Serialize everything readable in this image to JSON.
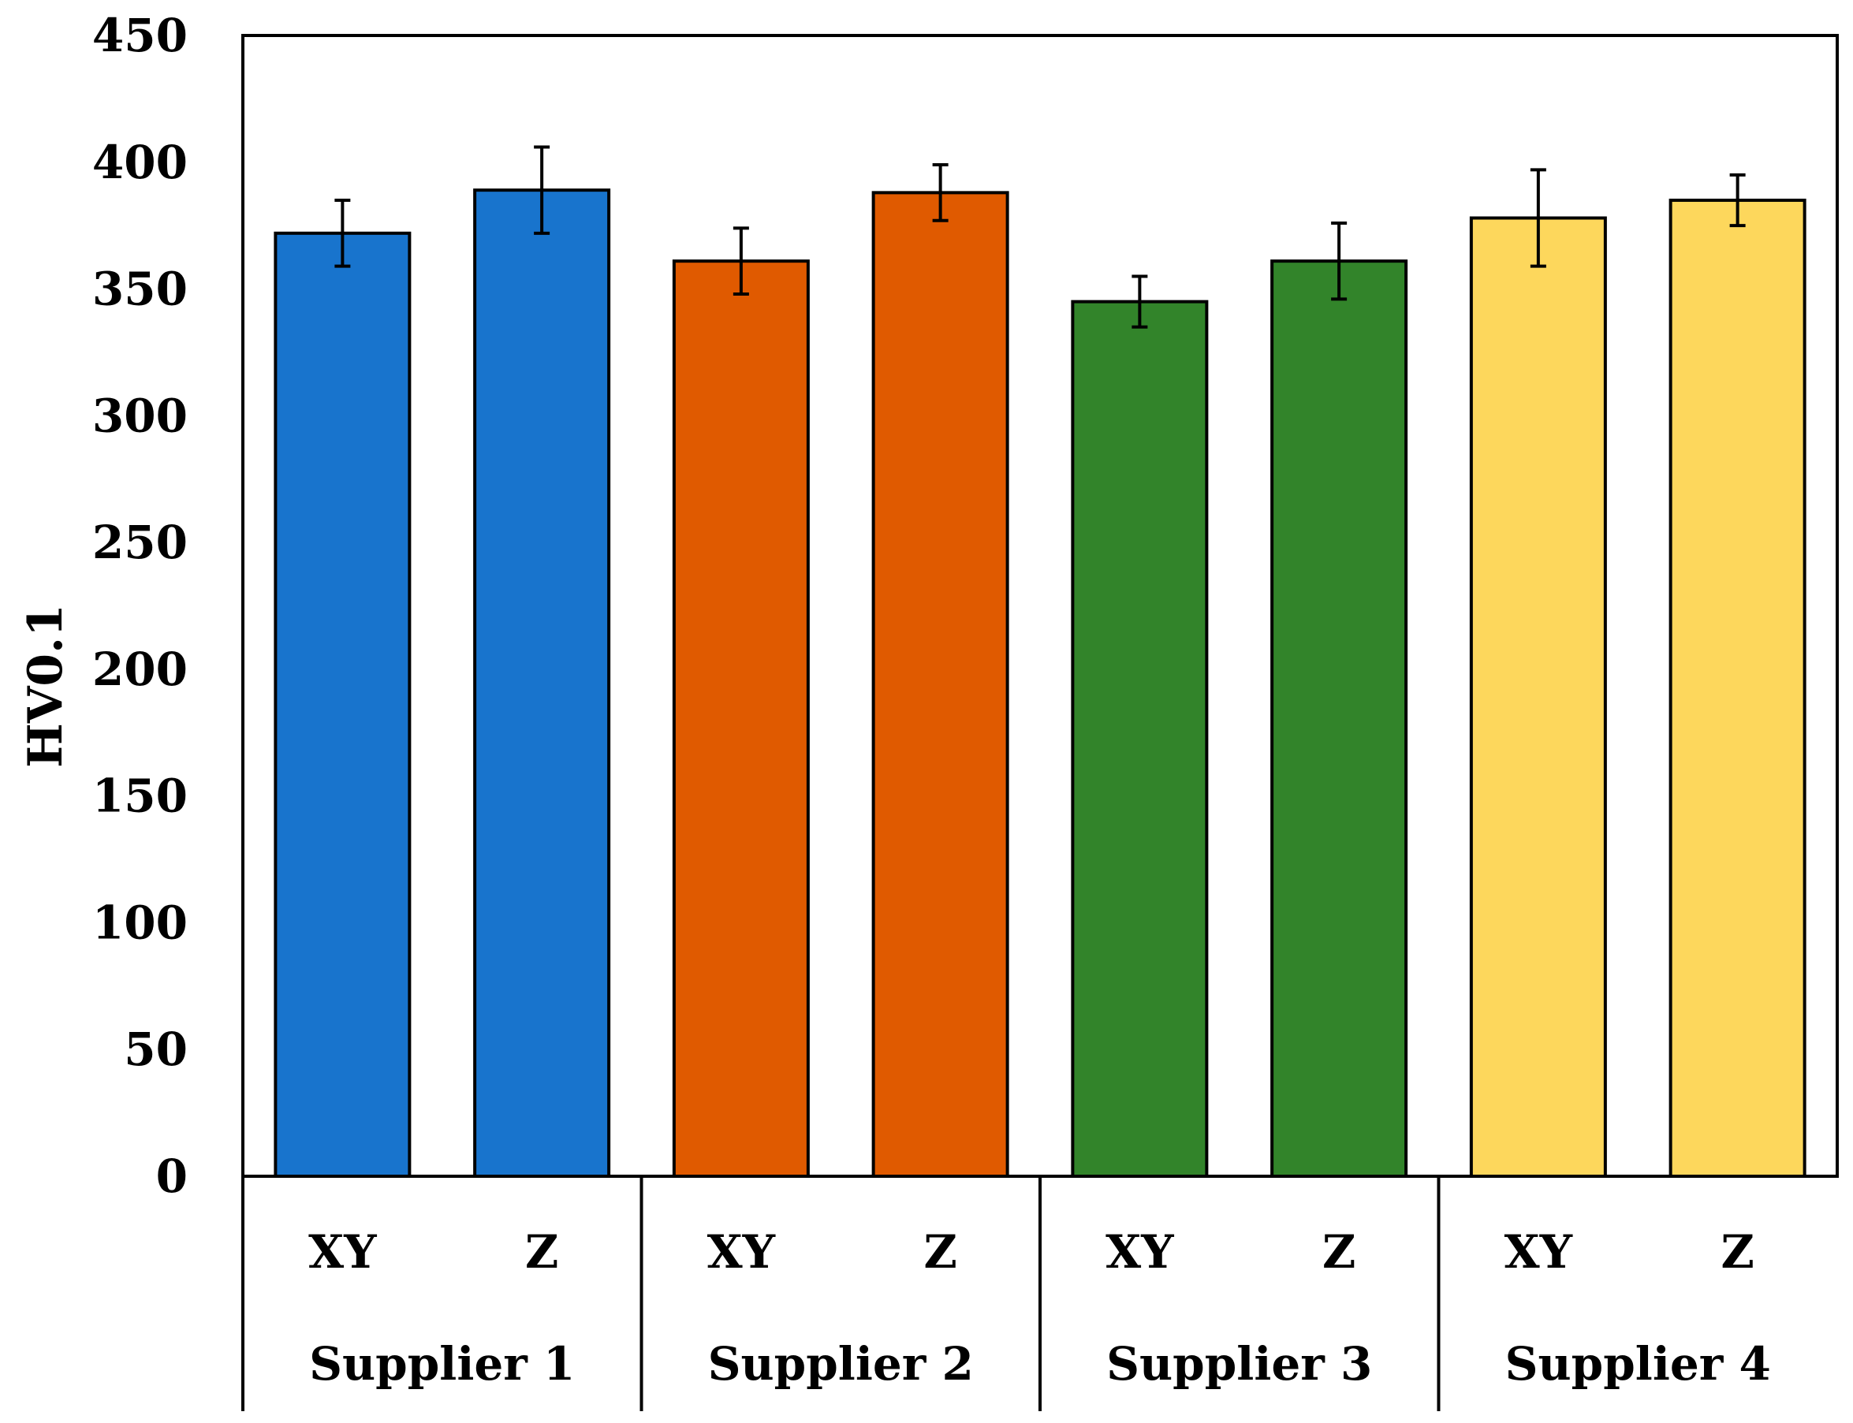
{
  "chart_data": {
    "type": "bar",
    "title": "",
    "xlabel": "",
    "ylabel": "HV0.1",
    "ylim": [
      0,
      450
    ],
    "yticks": [
      0,
      50,
      100,
      150,
      200,
      250,
      300,
      350,
      400,
      450
    ],
    "grid": false,
    "legend": "none",
    "groups": [
      {
        "name": "Supplier 1",
        "color": "#1874CD",
        "bars": [
          {
            "category": "XY",
            "value": 372,
            "error": 13
          },
          {
            "category": "Z",
            "value": 389,
            "error": 17
          }
        ]
      },
      {
        "name": "Supplier 2",
        "color": "#E05A00",
        "bars": [
          {
            "category": "XY",
            "value": 361,
            "error": 13
          },
          {
            "category": "Z",
            "value": 388,
            "error": 11
          }
        ]
      },
      {
        "name": "Supplier 3",
        "color": "#32842A",
        "bars": [
          {
            "category": "XY",
            "value": 345,
            "error": 10
          },
          {
            "category": "Z",
            "value": 361,
            "error": 15
          }
        ]
      },
      {
        "name": "Supplier 4",
        "color": "#FDD75C",
        "bars": [
          {
            "category": "XY",
            "value": 378,
            "error": 19
          },
          {
            "category": "Z",
            "value": 385,
            "error": 10
          }
        ]
      }
    ]
  }
}
